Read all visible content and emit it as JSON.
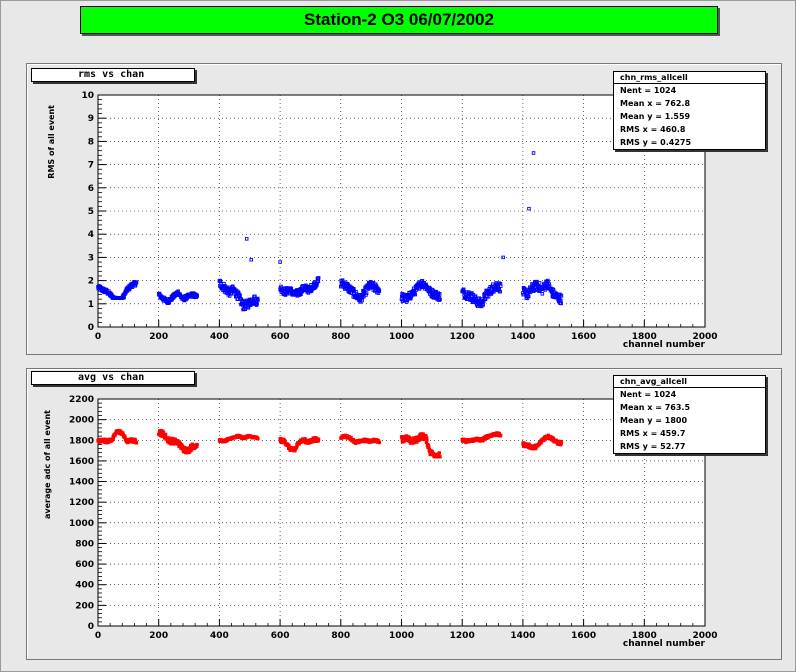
{
  "title": "Station-2 O3 06/07/2002",
  "colors": {
    "title_bg": "#00ff00",
    "rms_markers": "#0000ff",
    "avg_markers": "#ff0000",
    "frame_fill": "#ffffff",
    "canvas_bg": "#e8e8e8"
  },
  "chart_data": [
    {
      "type": "scatter",
      "pad_title": "rms vs chan",
      "xlabel": "channel number",
      "ylabel": "RMS of all event",
      "xlim": [
        0,
        2000
      ],
      "ylim": [
        0,
        10
      ],
      "xticks": [
        "0",
        "200",
        "400",
        "600",
        "800",
        "1000",
        "1200",
        "1400",
        "1600",
        "1800",
        "2000"
      ],
      "yticks": [
        "0",
        "1",
        "2",
        "3",
        "4",
        "5",
        "6",
        "7",
        "8",
        "9",
        "10"
      ],
      "grid": true,
      "legend_position": "top-right",
      "stats": {
        "name": "chn_rms_allcell",
        "rows": [
          {
            "label": "Nent = ",
            "value": "1024"
          },
          {
            "label": "Mean x = ",
            "value": "762.8"
          },
          {
            "label": "Mean y = ",
            "value": "1.559"
          },
          {
            "label": "RMS x = ",
            "value": "460.8"
          },
          {
            "label": "RMS y = ",
            "value": "0.4275"
          }
        ]
      },
      "groups": [
        {
          "start": 0,
          "end": 128,
          "y": [
            1.25,
            2.1
          ],
          "profile": [
            1.7,
            1.6,
            1.5,
            1.3,
            1.1,
            1.2,
            1.6,
            1.8,
            1.9
          ]
        },
        {
          "start": 200,
          "end": 328,
          "y": [
            0.9,
            1.7
          ],
          "profile": [
            1.4,
            1.2,
            1.1,
            1.3,
            1.5,
            1.2,
            1.3,
            1.4,
            1.3
          ]
        },
        {
          "start": 400,
          "end": 528,
          "y": [
            0.6,
            2.2
          ],
          "profile": [
            1.9,
            1.7,
            1.5,
            1.6,
            1.3,
            0.9,
            1.0,
            1.2,
            1.1
          ]
        },
        {
          "start": 600,
          "end": 728,
          "y": [
            1.1,
            2.4
          ],
          "profile": [
            1.7,
            1.5,
            1.6,
            1.4,
            1.5,
            1.7,
            1.6,
            1.8,
            2.0
          ]
        },
        {
          "start": 800,
          "end": 928,
          "y": [
            0.7,
            2.3
          ],
          "profile": [
            1.9,
            1.8,
            1.6,
            1.4,
            1.2,
            1.5,
            1.8,
            1.7,
            1.6
          ]
        },
        {
          "start": 1000,
          "end": 1128,
          "y": [
            0.8,
            2.3
          ],
          "profile": [
            1.3,
            1.2,
            1.4,
            1.6,
            1.9,
            1.8,
            1.5,
            1.4,
            1.3
          ]
        },
        {
          "start": 1200,
          "end": 1328,
          "y": [
            0.7,
            2.4
          ],
          "profile": [
            1.5,
            1.4,
            1.3,
            1.1,
            1.0,
            1.4,
            1.6,
            1.8,
            1.7
          ]
        },
        {
          "start": 1400,
          "end": 1528,
          "y": [
            0.9,
            2.6
          ],
          "profile": [
            1.5,
            1.4,
            1.7,
            1.8,
            1.6,
            1.9,
            1.5,
            1.3,
            1.2
          ]
        }
      ],
      "outliers": [
        {
          "x": 490,
          "y": 3.8
        },
        {
          "x": 505,
          "y": 2.9
        },
        {
          "x": 600,
          "y": 2.8
        },
        {
          "x": 1335,
          "y": 3.0
        },
        {
          "x": 1420,
          "y": 5.1
        },
        {
          "x": 1435,
          "y": 7.5
        }
      ]
    },
    {
      "type": "scatter",
      "pad_title": "avg vs chan",
      "xlabel": "channel number",
      "ylabel": "average adc of all event",
      "xlim": [
        0,
        2000
      ],
      "ylim": [
        0,
        2200
      ],
      "xticks": [
        "0",
        "200",
        "400",
        "600",
        "800",
        "1000",
        "1200",
        "1400",
        "1600",
        "1800",
        "2000"
      ],
      "yticks": [
        "0",
        "200",
        "400",
        "600",
        "800",
        "1000",
        "1200",
        "1400",
        "1600",
        "1800",
        "2000",
        "2200"
      ],
      "grid": true,
      "legend_position": "top-right",
      "stats": {
        "name": "chn_avg_allcell",
        "rows": [
          {
            "label": "Nent = ",
            "value": "1024"
          },
          {
            "label": "Mean x = ",
            "value": "763.5"
          },
          {
            "label": "Mean y = ",
            "value": "1800"
          },
          {
            "label": "RMS x = ",
            "value": "459.7"
          },
          {
            "label": "RMS y = ",
            "value": "52.77"
          }
        ]
      },
      "groups": [
        {
          "start": 0,
          "end": 128,
          "y": [
            1770,
            1910
          ],
          "profile": [
            1790,
            1800,
            1790,
            1810,
            1890,
            1870,
            1790,
            1800,
            1790
          ]
        },
        {
          "start": 200,
          "end": 328,
          "y": [
            1680,
            1920
          ],
          "profile": [
            1880,
            1860,
            1800,
            1790,
            1780,
            1720,
            1700,
            1740,
            1760
          ]
        },
        {
          "start": 400,
          "end": 528,
          "y": [
            1780,
            1860
          ],
          "profile": [
            1800,
            1790,
            1810,
            1830,
            1840,
            1820,
            1840,
            1830,
            1820
          ]
        },
        {
          "start": 600,
          "end": 728,
          "y": [
            1680,
            1840
          ],
          "profile": [
            1800,
            1790,
            1720,
            1700,
            1790,
            1800,
            1780,
            1810,
            1800
          ]
        },
        {
          "start": 800,
          "end": 928,
          "y": [
            1760,
            1860
          ],
          "profile": [
            1830,
            1840,
            1820,
            1780,
            1790,
            1800,
            1790,
            1800,
            1790
          ]
        },
        {
          "start": 1000,
          "end": 1128,
          "y": [
            1640,
            1880
          ],
          "profile": [
            1810,
            1820,
            1790,
            1800,
            1840,
            1830,
            1680,
            1660,
            1650
          ]
        },
        {
          "start": 1200,
          "end": 1328,
          "y": [
            1770,
            1890
          ],
          "profile": [
            1800,
            1790,
            1800,
            1810,
            1800,
            1830,
            1850,
            1860,
            1850
          ]
        },
        {
          "start": 1400,
          "end": 1528,
          "y": [
            1710,
            1860
          ],
          "profile": [
            1760,
            1750,
            1730,
            1740,
            1800,
            1840,
            1820,
            1780,
            1770
          ]
        }
      ],
      "outliers": []
    }
  ]
}
